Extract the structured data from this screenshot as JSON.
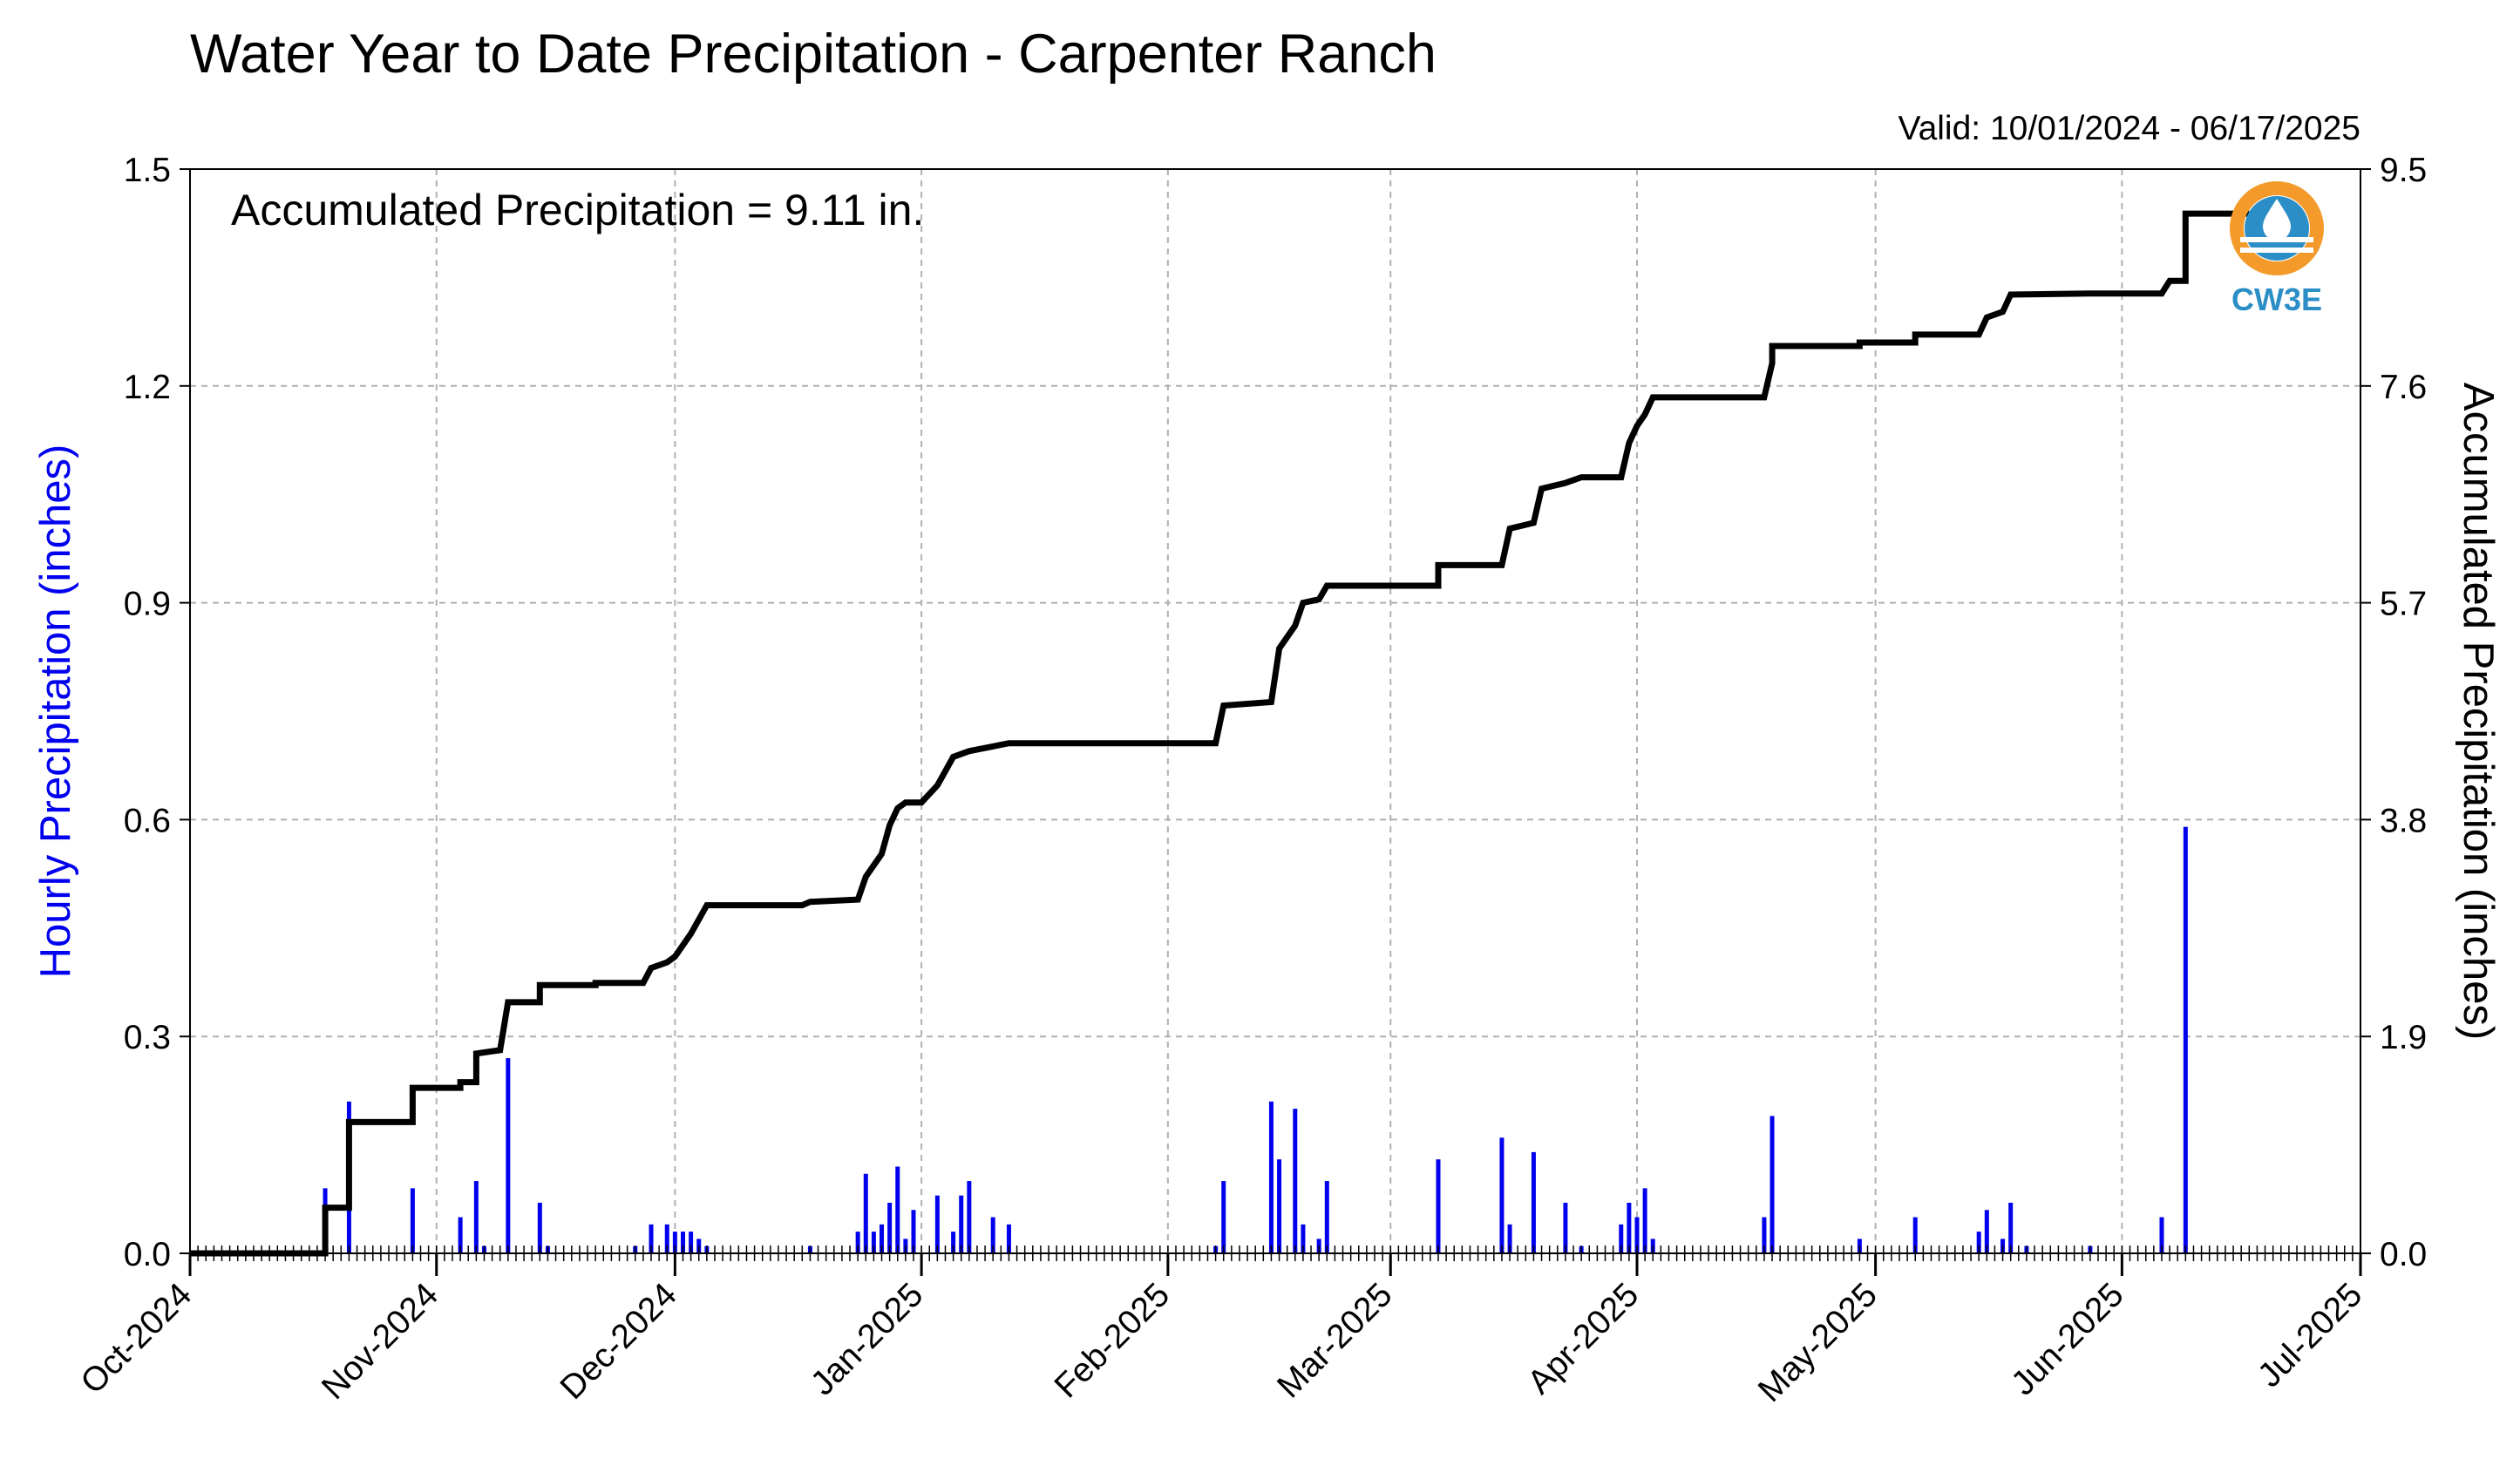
{
  "chart_data": {
    "type": "bar+line",
    "title": "Water Year to Date Precipitation - Carpenter Ranch",
    "valid_text": "Valid: 10/01/2024 - 06/17/2025",
    "annotation": "Accumulated Precipitation = 9.11 in.",
    "ylabel_left": "Hourly Precipitation (inches)",
    "ylabel_right": "Accumulated Precipitation (inches)",
    "ylim_left": [
      0,
      1.5
    ],
    "ylim_right": [
      0,
      9.5
    ],
    "yticks_left": [
      "0.0",
      "0.3",
      "0.6",
      "0.9",
      "1.2",
      "1.5"
    ],
    "yticks_right": [
      "0.0",
      "1.9",
      "3.8",
      "5.7",
      "7.6",
      "9.5"
    ],
    "x_range": [
      "2024-10-01",
      "2025-07-01"
    ],
    "x_ticks": [
      {
        "date": "2024-10-01",
        "label": "Oct-2024"
      },
      {
        "date": "2024-11-01",
        "label": "Nov-2024"
      },
      {
        "date": "2024-12-01",
        "label": "Dec-2024"
      },
      {
        "date": "2025-01-01",
        "label": "Jan-2025"
      },
      {
        "date": "2025-02-01",
        "label": "Feb-2025"
      },
      {
        "date": "2025-03-01",
        "label": "Mar-2025"
      },
      {
        "date": "2025-04-01",
        "label": "Apr-2025"
      },
      {
        "date": "2025-05-01",
        "label": "May-2025"
      },
      {
        "date": "2025-06-01",
        "label": "Jun-2025"
      },
      {
        "date": "2025-07-01",
        "label": "Jul-2025"
      }
    ],
    "grid": true,
    "colors": {
      "hourly": "#0000ee",
      "accumulated": "#000000",
      "grid": "#b0b0b0"
    },
    "hourly_series": {
      "name": "Hourly Precipitation",
      "points": [
        {
          "date": "2024-10-18",
          "value": 0.09
        },
        {
          "date": "2024-10-21",
          "value": 0.21
        },
        {
          "date": "2024-10-29",
          "value": 0.09
        },
        {
          "date": "2024-11-04",
          "value": 0.05
        },
        {
          "date": "2024-11-06",
          "value": 0.1
        },
        {
          "date": "2024-11-07",
          "value": 0.01
        },
        {
          "date": "2024-11-10",
          "value": 0.27
        },
        {
          "date": "2024-11-14",
          "value": 0.07
        },
        {
          "date": "2024-11-15",
          "value": 0.01
        },
        {
          "date": "2024-11-26",
          "value": 0.01
        },
        {
          "date": "2024-11-28",
          "value": 0.04
        },
        {
          "date": "2024-11-30",
          "value": 0.04
        },
        {
          "date": "2024-12-01",
          "value": 0.03
        },
        {
          "date": "2024-12-02",
          "value": 0.03
        },
        {
          "date": "2024-12-03",
          "value": 0.03
        },
        {
          "date": "2024-12-04",
          "value": 0.02
        },
        {
          "date": "2024-12-05",
          "value": 0.01
        },
        {
          "date": "2024-12-18",
          "value": 0.01
        },
        {
          "date": "2024-12-24",
          "value": 0.03
        },
        {
          "date": "2024-12-25",
          "value": 0.11
        },
        {
          "date": "2024-12-26",
          "value": 0.03
        },
        {
          "date": "2024-12-27",
          "value": 0.04
        },
        {
          "date": "2024-12-28",
          "value": 0.07
        },
        {
          "date": "2024-12-29",
          "value": 0.12
        },
        {
          "date": "2024-12-30",
          "value": 0.02
        },
        {
          "date": "2024-12-31",
          "value": 0.06
        },
        {
          "date": "2025-01-03",
          "value": 0.08
        },
        {
          "date": "2025-01-05",
          "value": 0.03
        },
        {
          "date": "2025-01-06",
          "value": 0.08
        },
        {
          "date": "2025-01-07",
          "value": 0.1
        },
        {
          "date": "2025-01-10",
          "value": 0.05
        },
        {
          "date": "2025-01-12",
          "value": 0.04
        },
        {
          "date": "2025-02-07",
          "value": 0.01
        },
        {
          "date": "2025-02-08",
          "value": 0.1
        },
        {
          "date": "2025-02-14",
          "value": 0.21
        },
        {
          "date": "2025-02-15",
          "value": 0.13
        },
        {
          "date": "2025-02-17",
          "value": 0.2
        },
        {
          "date": "2025-02-18",
          "value": 0.04
        },
        {
          "date": "2025-02-20",
          "value": 0.02
        },
        {
          "date": "2025-02-21",
          "value": 0.1
        },
        {
          "date": "2025-03-07",
          "value": 0.13
        },
        {
          "date": "2025-03-15",
          "value": 0.16
        },
        {
          "date": "2025-03-16",
          "value": 0.04
        },
        {
          "date": "2025-03-19",
          "value": 0.14
        },
        {
          "date": "2025-03-23",
          "value": 0.07
        },
        {
          "date": "2025-03-25",
          "value": 0.01
        },
        {
          "date": "2025-03-30",
          "value": 0.04
        },
        {
          "date": "2025-03-31",
          "value": 0.07
        },
        {
          "date": "2025-04-01",
          "value": 0.05
        },
        {
          "date": "2025-04-02",
          "value": 0.09
        },
        {
          "date": "2025-04-03",
          "value": 0.02
        },
        {
          "date": "2025-04-17",
          "value": 0.05
        },
        {
          "date": "2025-04-18",
          "value": 0.19
        },
        {
          "date": "2025-04-29",
          "value": 0.02
        },
        {
          "date": "2025-05-06",
          "value": 0.05
        },
        {
          "date": "2025-05-14",
          "value": 0.03
        },
        {
          "date": "2025-05-15",
          "value": 0.06
        },
        {
          "date": "2025-05-17",
          "value": 0.02
        },
        {
          "date": "2025-05-18",
          "value": 0.07
        },
        {
          "date": "2025-05-20",
          "value": 0.01
        },
        {
          "date": "2025-05-28",
          "value": 0.01
        },
        {
          "date": "2025-06-06",
          "value": 0.05
        },
        {
          "date": "2025-06-09",
          "value": 0.59
        }
      ]
    },
    "accumulated_series": {
      "name": "Accumulated Precipitation",
      "points": [
        {
          "date": "2024-10-01",
          "value": 0.0
        },
        {
          "date": "2024-10-18",
          "value": 0.0
        },
        {
          "date": "2024-10-18",
          "value": 0.4
        },
        {
          "date": "2024-10-21",
          "value": 0.4
        },
        {
          "date": "2024-10-21",
          "value": 1.15
        },
        {
          "date": "2024-10-29",
          "value": 1.15
        },
        {
          "date": "2024-10-29",
          "value": 1.45
        },
        {
          "date": "2024-11-04",
          "value": 1.45
        },
        {
          "date": "2024-11-04",
          "value": 1.5
        },
        {
          "date": "2024-11-06",
          "value": 1.5
        },
        {
          "date": "2024-11-06",
          "value": 1.75
        },
        {
          "date": "2024-11-09",
          "value": 1.78
        },
        {
          "date": "2024-11-10",
          "value": 2.2
        },
        {
          "date": "2024-11-14",
          "value": 2.2
        },
        {
          "date": "2024-11-14",
          "value": 2.35
        },
        {
          "date": "2024-11-21",
          "value": 2.35
        },
        {
          "date": "2024-11-21",
          "value": 2.37
        },
        {
          "date": "2024-11-27",
          "value": 2.37
        },
        {
          "date": "2024-11-28",
          "value": 2.5
        },
        {
          "date": "2024-11-30",
          "value": 2.55
        },
        {
          "date": "2024-12-01",
          "value": 2.6
        },
        {
          "date": "2024-12-03",
          "value": 2.8
        },
        {
          "date": "2024-12-05",
          "value": 3.05
        },
        {
          "date": "2024-12-17",
          "value": 3.05
        },
        {
          "date": "2024-12-18",
          "value": 3.08
        },
        {
          "date": "2024-12-24",
          "value": 3.1
        },
        {
          "date": "2024-12-25",
          "value": 3.3
        },
        {
          "date": "2024-12-27",
          "value": 3.5
        },
        {
          "date": "2024-12-28",
          "value": 3.75
        },
        {
          "date": "2024-12-29",
          "value": 3.9
        },
        {
          "date": "2024-12-30",
          "value": 3.95
        },
        {
          "date": "2025-01-01",
          "value": 3.95
        },
        {
          "date": "2025-01-03",
          "value": 4.1
        },
        {
          "date": "2025-01-05",
          "value": 4.35
        },
        {
          "date": "2025-01-07",
          "value": 4.4
        },
        {
          "date": "2025-01-12",
          "value": 4.47
        },
        {
          "date": "2025-02-07",
          "value": 4.47
        },
        {
          "date": "2025-02-08",
          "value": 4.8
        },
        {
          "date": "2025-02-14",
          "value": 4.83
        },
        {
          "date": "2025-02-15",
          "value": 5.3
        },
        {
          "date": "2025-02-17",
          "value": 5.5
        },
        {
          "date": "2025-02-18",
          "value": 5.7
        },
        {
          "date": "2025-02-20",
          "value": 5.73
        },
        {
          "date": "2025-02-21",
          "value": 5.85
        },
        {
          "date": "2025-03-07",
          "value": 5.85
        },
        {
          "date": "2025-03-07",
          "value": 6.03
        },
        {
          "date": "2025-03-15",
          "value": 6.03
        },
        {
          "date": "2025-03-16",
          "value": 6.35
        },
        {
          "date": "2025-03-19",
          "value": 6.4
        },
        {
          "date": "2025-03-20",
          "value": 6.7
        },
        {
          "date": "2025-03-23",
          "value": 6.75
        },
        {
          "date": "2025-03-25",
          "value": 6.8
        },
        {
          "date": "2025-03-30",
          "value": 6.8
        },
        {
          "date": "2025-03-31",
          "value": 7.1
        },
        {
          "date": "2025-04-01",
          "value": 7.25
        },
        {
          "date": "2025-04-02",
          "value": 7.35
        },
        {
          "date": "2025-04-03",
          "value": 7.5
        },
        {
          "date": "2025-04-17",
          "value": 7.5
        },
        {
          "date": "2025-04-18",
          "value": 7.8
        },
        {
          "date": "2025-04-18",
          "value": 7.95
        },
        {
          "date": "2025-04-29",
          "value": 7.95
        },
        {
          "date": "2025-04-29",
          "value": 7.98
        },
        {
          "date": "2025-05-06",
          "value": 7.98
        },
        {
          "date": "2025-05-06",
          "value": 8.05
        },
        {
          "date": "2025-05-14",
          "value": 8.05
        },
        {
          "date": "2025-05-15",
          "value": 8.2
        },
        {
          "date": "2025-05-17",
          "value": 8.25
        },
        {
          "date": "2025-05-18",
          "value": 8.4
        },
        {
          "date": "2025-05-28",
          "value": 8.41
        },
        {
          "date": "2025-06-06",
          "value": 8.41
        },
        {
          "date": "2025-06-07",
          "value": 8.52
        },
        {
          "date": "2025-06-09",
          "value": 8.52
        },
        {
          "date": "2025-06-09",
          "value": 9.11
        },
        {
          "date": "2025-06-17",
          "value": 9.11
        }
      ]
    }
  },
  "logo": {
    "text": "CW3E",
    "colors": [
      "#f39a2a",
      "#2b8ec6"
    ]
  }
}
